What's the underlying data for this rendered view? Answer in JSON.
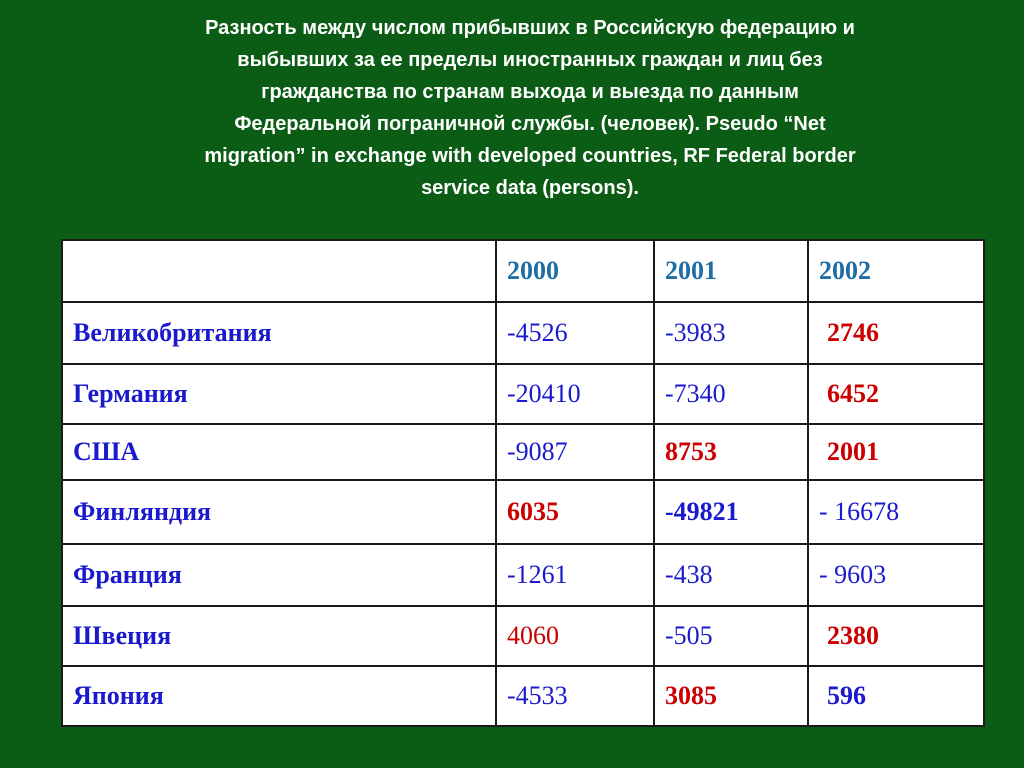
{
  "slide": {
    "title_lines": [
      "Разность между числом прибывших в Российскую федерацию  и",
      "выбывших за ее пределы иностранных граждан и лиц без",
      "гражданства по странам выхода и выезда  по данным",
      "Федеральной пограничной службы. (человек). Pseudo “Net",
      "migration” in exchange with developed countries,  RF Federal border",
      "service data (persons)."
    ],
    "colors": {
      "background": "#0b5c14",
      "title": "#ffffff",
      "year_header": "#1f6ea3",
      "country": "#1a1acc",
      "negative": "#1a1acc",
      "positive": "#cc0000"
    }
  },
  "table": {
    "years": [
      "2000",
      "2001",
      "2002"
    ],
    "rows": [
      {
        "country": "Великобритания",
        "v2000": "-4526",
        "v2001": "-3983",
        "v2002": "2746"
      },
      {
        "country": "Германия",
        "v2000": "-20410",
        "v2001": "-7340",
        "v2002": "6452"
      },
      {
        "country": "США",
        "v2000": "-9087",
        "v2001": "8753",
        "v2002": "2001"
      },
      {
        "country": "Финляндия",
        "v2000": "6035",
        "v2001": "-49821",
        "v2002": "- 16678"
      },
      {
        "country": "Франция",
        "v2000": "-1261",
        "v2001": "-438",
        "v2002": "- 9603"
      },
      {
        "country": "Швеция",
        "v2000": "4060",
        "v2001": "-505",
        "v2002": "2380"
      },
      {
        "country": "Япония",
        "v2000": "-4533",
        "v2001": "3085",
        "v2002": "596"
      }
    ]
  }
}
